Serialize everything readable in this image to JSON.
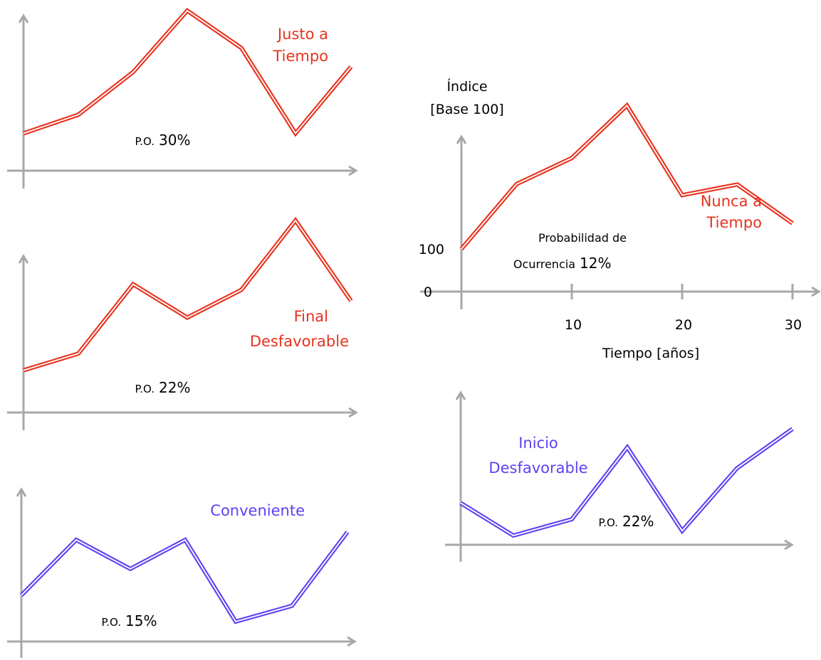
{
  "colors": {
    "red": "#e8321e",
    "blue": "#5b43f0",
    "axis": "#a8a8a8",
    "text": "#000000"
  },
  "main_chart": {
    "ylabel_line1": "Índice",
    "ylabel_line2": "[Base 100]",
    "xlabel": "Tiempo [años]",
    "x_ticks": [
      "10",
      "20",
      "30"
    ],
    "y_ticks": [
      "100",
      "0"
    ],
    "title_line1": "Nunca a",
    "title_line2": "Tiempo",
    "po_line1": "Probabilidad de",
    "po_line2_prefix": "Ocurrencia",
    "po_value": "12%"
  },
  "panels": {
    "justo": {
      "title_line1": "Justo a",
      "title_line2": "Tiempo",
      "po_prefix": "P.O.",
      "po_value": "30%"
    },
    "final": {
      "title_line1": "Final",
      "title_line2": "Desfavorable",
      "po_prefix": "P.O.",
      "po_value": "22%"
    },
    "conveniente": {
      "title_line1": "Conveniente",
      "po_prefix": "P.O.",
      "po_value": "15%"
    },
    "inicio": {
      "title_line1": "Inicio",
      "title_line2": "Desfavorable",
      "po_prefix": "P.O.",
      "po_value": "22%"
    }
  },
  "chart_data": [
    {
      "type": "line",
      "title": "Nunca a Tiempo",
      "xlabel": "Tiempo [años]",
      "ylabel": "Índice [Base 100]",
      "color": "red",
      "x": [
        0,
        5,
        10,
        15,
        20,
        25,
        30
      ],
      "y": [
        100,
        252,
        313,
        436,
        226,
        251,
        160
      ],
      "xlim": [
        0,
        30
      ],
      "annotation": "Probabilidad de Ocurrencia 12%"
    },
    {
      "type": "line",
      "title": "Justo a Tiempo",
      "color": "red",
      "x": [
        0,
        5,
        10,
        15,
        20,
        25,
        30
      ],
      "y": [
        14,
        21,
        37,
        60,
        46,
        14,
        39
      ],
      "annotation": "P.O. 30%"
    },
    {
      "type": "line",
      "title": "Final Desfavorable",
      "color": "red",
      "x": [
        0,
        5,
        10,
        15,
        20,
        25,
        30
      ],
      "y": [
        16,
        22,
        47,
        35,
        45,
        70,
        41
      ],
      "annotation": "P.O. 22%"
    },
    {
      "type": "line",
      "title": "Conveniente",
      "color": "blue",
      "x": [
        0,
        5,
        10,
        15,
        20,
        25,
        30
      ],
      "y": [
        17,
        38,
        27,
        38,
        7,
        13,
        41
      ],
      "annotation": "P.O. 15%"
    },
    {
      "type": "line",
      "title": "Inicio Desfavorable",
      "color": "blue",
      "x": [
        0,
        5,
        10,
        15,
        20,
        25,
        30
      ],
      "y": [
        18,
        4,
        11,
        42,
        6,
        33,
        50
      ],
      "annotation": "P.O. 22%"
    }
  ]
}
